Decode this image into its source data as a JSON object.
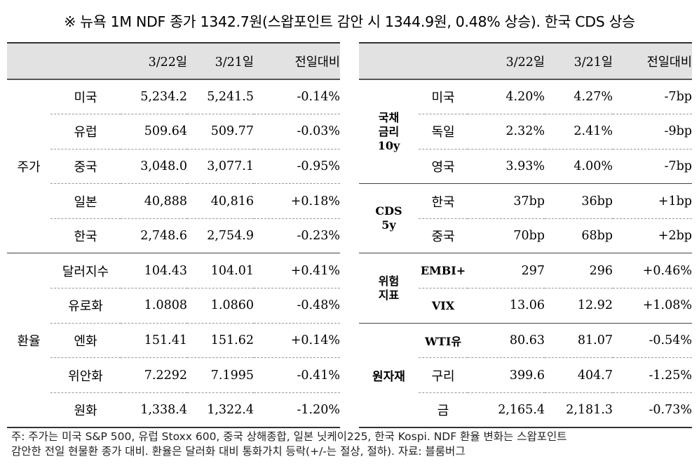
{
  "title": "※ 뉴욕 1M NDF 종가 1342.7원(스왑포인트 감안 시 1344.9원, 0.48% 상승). 한국 CDS 상승",
  "left": {
    "headers": [
      "",
      "",
      "3/22일",
      "3/21일",
      "전일대비"
    ],
    "groups": [
      {
        "label": "주가",
        "rows": [
          {
            "name": "미국",
            "d1": "5,234.2",
            "d2": "5,241.5",
            "chg": "-0.14%"
          },
          {
            "name": "유럽",
            "d1": "509.64",
            "d2": "509.77",
            "chg": "-0.03%"
          },
          {
            "name": "중국",
            "d1": "3,048.0",
            "d2": "3,077.1",
            "chg": "-0.95%"
          },
          {
            "name": "일본",
            "d1": "40,888",
            "d2": "40,816",
            "chg": "+0.18%"
          },
          {
            "name": "한국",
            "d1": "2,748.6",
            "d2": "2,754.9",
            "chg": "-0.23%"
          }
        ]
      },
      {
        "label": "환율",
        "rows": [
          {
            "name": "달러지수",
            "d1": "104.43",
            "d2": "104.01",
            "chg": "+0.41%"
          },
          {
            "name": "유로화",
            "d1": "1.0808",
            "d2": "1.0860",
            "chg": "-0.48%"
          },
          {
            "name": "엔화",
            "d1": "151.41",
            "d2": "151.62",
            "chg": "+0.14%"
          },
          {
            "name": "위안화",
            "d1": "7.2292",
            "d2": "7.1995",
            "chg": "-0.41%"
          },
          {
            "name": "원화",
            "d1": "1,338.4",
            "d2": "1,322.4",
            "chg": "-1.20%"
          }
        ]
      }
    ]
  },
  "right": {
    "headers": [
      "",
      "",
      "3/22일",
      "3/21일",
      "전일대비"
    ],
    "groups": [
      {
        "label": "국채\n금리\n10y",
        "rows": [
          {
            "name": "미국",
            "d1": "4.20%",
            "d2": "4.27%",
            "chg": "-7bp"
          },
          {
            "name": "독일",
            "d1": "2.32%",
            "d2": "2.41%",
            "chg": "-9bp"
          },
          {
            "name": "영국",
            "d1": "3.93%",
            "d2": "4.00%",
            "chg": "-7bp"
          }
        ]
      },
      {
        "label": "CDS\n5y",
        "rows": [
          {
            "name": "한국",
            "d1": "37bp",
            "d2": "36bp",
            "chg": "+1bp"
          },
          {
            "name": "중국",
            "d1": "70bp",
            "d2": "68bp",
            "chg": "+2bp"
          }
        ]
      },
      {
        "label": "위험\n지표",
        "rows": [
          {
            "name": "EMBI+",
            "d1": "297",
            "d2": "296",
            "chg": "+0.46%"
          },
          {
            "name": "VIX",
            "d1": "13.06",
            "d2": "12.92",
            "chg": "+1.08%"
          }
        ]
      },
      {
        "label": "원자재",
        "rows": [
          {
            "name": "WTI유",
            "d1": "80.63",
            "d2": "81.07",
            "chg": "-0.54%"
          },
          {
            "name": "구리",
            "d1": "399.6",
            "d2": "404.7",
            "chg": "-1.25%"
          },
          {
            "name": "금",
            "d1": "2,165.4",
            "d2": "2,181.3",
            "chg": "-0.73%"
          }
        ]
      }
    ]
  },
  "footer": [
    "주: 주가는 미국 S&P 500, 유럽 Stoxx 600, 중국 상해종합, 일본 닛케이225, 한국 Kospi. NDF 환율 변화는 스왑포인트",
    "감안한 전일 현물환 종가 대비. 환율은 달러화 대비 통화가치 등락(+/-는 절상, 절하). 자료: 블룸버그"
  ]
}
